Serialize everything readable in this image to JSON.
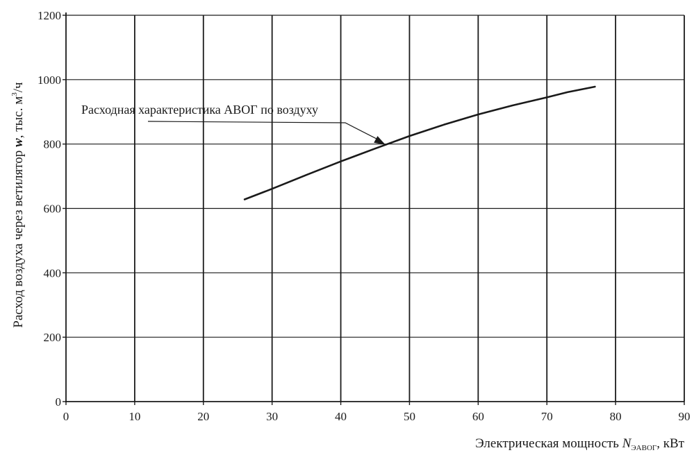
{
  "chart_data": {
    "type": "line",
    "title": "",
    "xlabel_prefix": "Электрическая мощность ",
    "xlabel_var": "N",
    "xlabel_sub": "ЭАВОГ",
    "xlabel_suffix": ", кВт",
    "ylabel_prefix": "Расход воздуха через ветилятор ",
    "ylabel_var": "w",
    "ylabel_mid": ", тыс. м",
    "ylabel_sup": "3",
    "ylabel_suffix": "/ч",
    "xlim": [
      0,
      90
    ],
    "ylim": [
      0,
      1200
    ],
    "xticks": [
      0,
      10,
      20,
      30,
      40,
      50,
      60,
      70,
      80,
      90
    ],
    "yticks": [
      0,
      200,
      400,
      600,
      800,
      1000,
      1200
    ],
    "grid": true,
    "series": [
      {
        "name": "",
        "x": [
          26,
          30,
          35,
          40,
          45,
          50,
          55,
          60,
          65,
          70,
          73,
          77
        ],
        "y": [
          628,
          661,
          704,
          746,
          786,
          825,
          860,
          892,
          920,
          945,
          961,
          978
        ]
      }
    ],
    "annotations": [
      {
        "text": "Расходная характеристика АВОГ по воздуху",
        "points_to": {
          "x": 46.5,
          "y": 798
        }
      }
    ]
  }
}
